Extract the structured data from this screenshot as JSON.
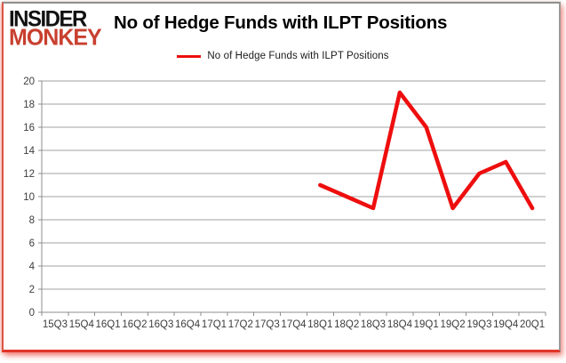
{
  "logo": {
    "line1": "INSIDER",
    "line2": "MONKEY"
  },
  "header": {
    "title": "No of Hedge Funds with ILPT Positions"
  },
  "legend": {
    "label": "No of Hedge Funds with ILPT Positions"
  },
  "chart_data": {
    "type": "line",
    "title": "No of Hedge Funds with ILPT Positions",
    "categories": [
      "15Q3",
      "15Q4",
      "16Q1",
      "16Q2",
      "16Q3",
      "16Q4",
      "17Q1",
      "17Q2",
      "17Q3",
      "17Q4",
      "18Q1",
      "18Q2",
      "18Q3",
      "18Q4",
      "19Q1",
      "19Q2",
      "19Q3",
      "19Q4",
      "20Q1"
    ],
    "series": [
      {
        "name": "No of Hedge Funds with ILPT Positions",
        "values": [
          null,
          null,
          null,
          null,
          null,
          null,
          null,
          null,
          null,
          null,
          11,
          10,
          9,
          19,
          16,
          9,
          12,
          13,
          9
        ]
      }
    ],
    "ylim": [
      0,
      20
    ],
    "ytick_step": 2,
    "grid": true,
    "legend_position": "top",
    "xlabel": "",
    "ylabel": "",
    "line_color": "#ee0e0e",
    "gridline_color": "#a2a2a2",
    "axis_color": "#8c8c8c",
    "label_color": "#3c3c3c",
    "background_color": "#ffffff"
  }
}
